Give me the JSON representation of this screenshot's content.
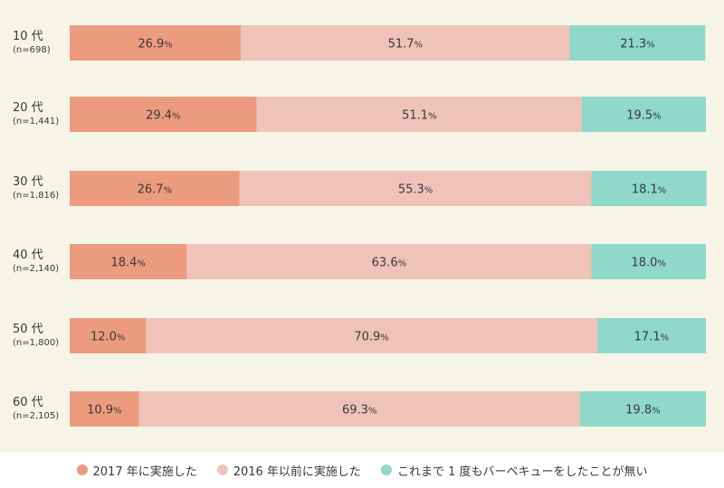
{
  "chart_data": {
    "type": "bar",
    "orientation": "horizontal",
    "stacked": true,
    "categories": [
      "10 代",
      "20 代",
      "30 代",
      "40 代",
      "50 代",
      "60 代"
    ],
    "category_sublabels": [
      "(n=698)",
      "(n=1,441)",
      "(n=1,816)",
      "(n=2,140)",
      "(n=1,800)",
      "(n=2,105)"
    ],
    "series": [
      {
        "name": "2017 年に実施した",
        "values": [
          26.9,
          29.4,
          26.7,
          18.4,
          12.0,
          10.9
        ],
        "color": "#ec9b7e"
      },
      {
        "name": "2016 年以前に実施した",
        "values": [
          51.7,
          51.1,
          55.3,
          63.6,
          70.9,
          69.3
        ],
        "color": "#efc3b8"
      },
      {
        "name": "これまで 1 度もバーベキューをしたことが無い",
        "values": [
          21.3,
          19.5,
          18.1,
          18.0,
          17.1,
          19.8
        ],
        "color": "#8fd8ca"
      }
    ],
    "value_suffix": "%",
    "xlim": [
      0,
      100
    ],
    "legend_position": "bottom",
    "grid": false
  }
}
